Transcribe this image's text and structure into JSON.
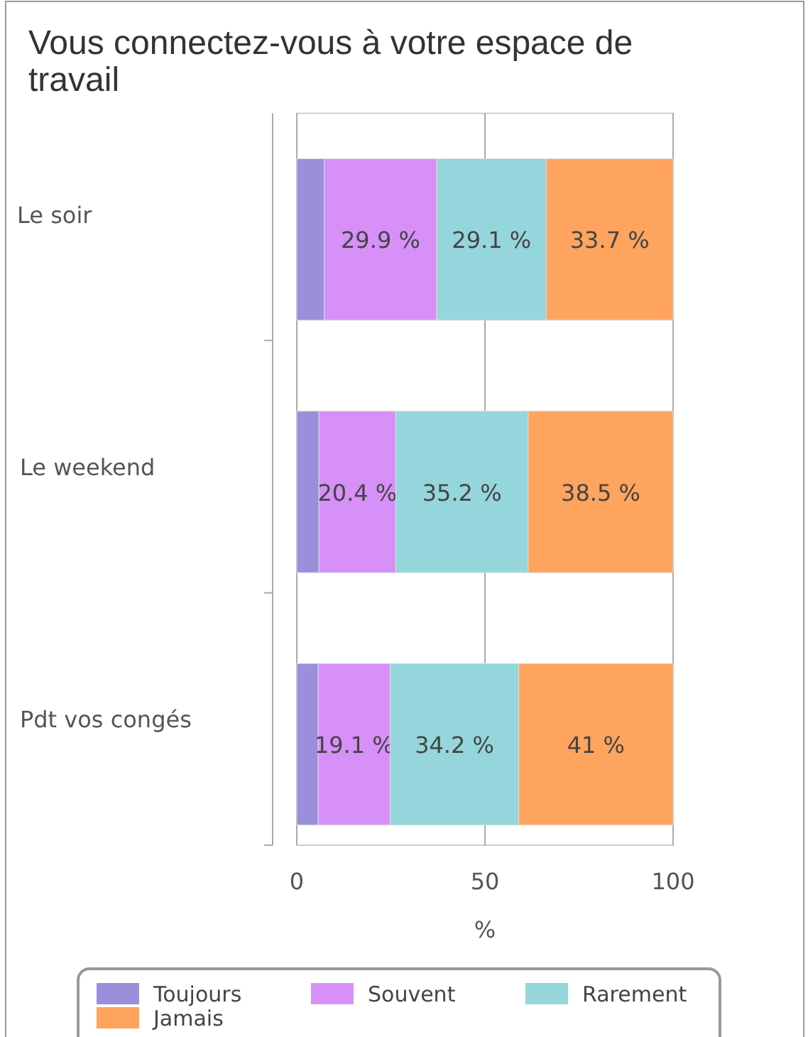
{
  "chart_data": {
    "type": "bar",
    "orientation": "horizontal",
    "stacked": true,
    "title": "Vous connectez-vous à votre espace de travail",
    "xlabel": "%",
    "categories": [
      "Le soir",
      "Le weekend",
      "Pdt vos congés"
    ],
    "series": [
      {
        "name": "Toujours",
        "color": "#9b8fdb",
        "values": [
          7.3,
          5.9,
          5.7
        ],
        "value_labels": [
          null,
          null,
          null
        ]
      },
      {
        "name": "Souvent",
        "color": "#d690f8",
        "values": [
          29.9,
          20.4,
          19.1
        ],
        "value_labels": [
          "29.9 %",
          "20.4 %",
          "19.1 %"
        ]
      },
      {
        "name": "Rarement",
        "color": "#95d6dc",
        "values": [
          29.1,
          35.2,
          34.2
        ],
        "value_labels": [
          "29.1 %",
          "35.2 %",
          "34.2 %"
        ]
      },
      {
        "name": "Jamais",
        "color": "#ffa45e",
        "values": [
          33.7,
          38.5,
          41
        ],
        "value_labels": [
          "33.7 %",
          "38.5 %",
          "41 %"
        ]
      }
    ],
    "xlim": [
      0,
      100
    ],
    "xticks": [
      0,
      50,
      100
    ],
    "grid": "x",
    "legend": "bottom"
  }
}
